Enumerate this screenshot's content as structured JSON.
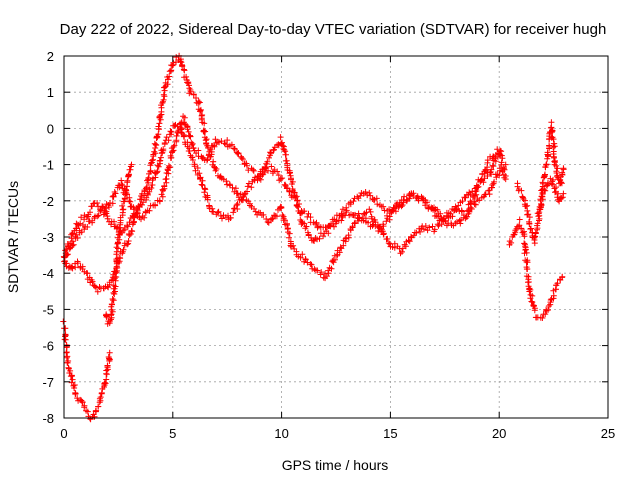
{
  "chart_data": {
    "type": "scatter",
    "title": "Day 222 of 2022, Sidereal Day-to-day VTEC variation (SDTVAR) for receiver hugh",
    "xlabel": "GPS time / hours",
    "ylabel": "SDTVAR / TECUs",
    "xlim": [
      0,
      25
    ],
    "ylim": [
      -8,
      2
    ],
    "x_ticks": [
      0,
      5,
      10,
      15,
      20,
      25
    ],
    "x_tick_labels": [
      "0",
      "5",
      "10",
      "15",
      "20",
      "25"
    ],
    "y_ticks": [
      -8,
      -7,
      -6,
      -5,
      -4,
      -3,
      -2,
      -1,
      0,
      1,
      2
    ],
    "y_tick_labels": [
      "-8",
      "-7",
      "-6",
      "-5",
      "-4",
      "-3",
      "-2",
      "-1",
      "0",
      "1",
      "2"
    ],
    "grid": true,
    "marker": "+",
    "color": "#ff0000",
    "series": [
      {
        "name": "trace-1",
        "x": [
          0.0,
          0.3,
          0.6,
          1.0,
          1.4,
          1.8,
          2.2,
          2.6,
          3.0,
          3.4,
          3.8,
          4.2,
          4.6,
          5.0,
          5.3,
          5.5,
          5.8,
          6.2,
          6.6,
          7.0,
          7.5,
          8.0,
          8.5,
          9.0,
          9.5,
          10.0,
          10.5,
          11.0,
          11.5,
          12.0,
          12.5,
          13.0,
          13.5,
          14.0,
          14.5,
          15.0,
          15.5,
          16.0,
          16.5,
          17.0,
          17.5,
          18.0,
          18.5,
          19.0,
          19.5,
          20.0,
          20.3
        ],
        "y": [
          -3.6,
          -3.9,
          -3.7,
          -4.0,
          -4.4,
          -4.5,
          -4.2,
          -3.5,
          -3.0,
          -2.2,
          -1.6,
          -0.5,
          1.0,
          1.8,
          2.0,
          1.6,
          1.0,
          0.7,
          -0.5,
          -1.2,
          -1.5,
          -1.8,
          -2.1,
          -2.4,
          -2.6,
          -2.2,
          -3.3,
          -3.6,
          -3.9,
          -4.1,
          -3.5,
          -3.0,
          -2.5,
          -2.3,
          -2.8,
          -3.2,
          -3.4,
          -3.0,
          -2.7,
          -2.8,
          -2.5,
          -2.3,
          -2.4,
          -2.0,
          -1.8,
          -1.2,
          -1.0
        ]
      },
      {
        "name": "trace-2",
        "x": [
          0.0,
          0.3,
          0.6,
          1.0,
          1.4,
          1.8,
          2.2,
          2.6,
          3.0,
          3.4,
          3.8,
          4.2,
          4.6,
          5.0,
          5.3,
          5.6,
          6.0,
          6.4,
          6.8,
          7.2,
          7.6,
          8.0,
          8.5,
          9.0,
          9.5,
          10.0,
          10.5,
          11.0,
          11.5,
          12.0,
          12.5,
          13.0,
          13.5,
          14.0,
          14.5,
          15.0,
          15.5,
          16.0,
          16.5,
          17.0,
          17.5,
          18.0,
          18.5,
          19.0,
          19.5,
          20.0
        ],
        "y": [
          -3.5,
          -3.1,
          -2.7,
          -2.4,
          -2.1,
          -2.2,
          -2.6,
          -2.9,
          -2.6,
          -2.2,
          -1.9,
          -1.3,
          -0.5,
          0.0,
          0.1,
          -0.4,
          -1.0,
          -1.6,
          -2.3,
          -2.4,
          -2.5,
          -2.1,
          -1.6,
          -1.3,
          -1.1,
          -1.4,
          -1.9,
          -2.3,
          -2.6,
          -2.8,
          -2.5,
          -2.2,
          -1.9,
          -1.8,
          -2.1,
          -2.3,
          -2.1,
          -1.8,
          -2.0,
          -2.2,
          -2.5,
          -2.2,
          -1.9,
          -1.6,
          -1.3,
          -0.7
        ]
      },
      {
        "name": "trace-3",
        "x": [
          0.0,
          0.3,
          0.6,
          0.9,
          1.2,
          1.5,
          1.8,
          2.2,
          2.6,
          3.0,
          3.5,
          4.0,
          4.5,
          5.0,
          5.5,
          6.0,
          6.5,
          7.0,
          7.5,
          8.0,
          8.5,
          9.0,
          9.5,
          10.0,
          10.5,
          11.0,
          11.5,
          12.0,
          12.5,
          13.0,
          13.5,
          14.0,
          14.5,
          15.0,
          15.5,
          16.0,
          16.5,
          17.0,
          17.5,
          18.0,
          18.5,
          19.0,
          19.5,
          20.0,
          20.3
        ],
        "y": [
          -3.7,
          -3.3,
          -3.0,
          -2.7,
          -2.6,
          -2.4,
          -2.3,
          -2.0,
          -1.5,
          -2.0,
          -2.5,
          -2.2,
          -1.9,
          -0.6,
          0.3,
          -0.6,
          -0.9,
          -0.3,
          -0.4,
          -0.7,
          -1.1,
          -1.4,
          -0.7,
          -0.3,
          -1.6,
          -2.7,
          -3.1,
          -2.9,
          -2.6,
          -2.3,
          -2.4,
          -2.6,
          -2.8,
          -2.4,
          -2.0,
          -1.8,
          -2.0,
          -2.3,
          -2.6,
          -2.7,
          -2.4,
          -1.6,
          -0.9,
          -0.6,
          -1.4
        ]
      },
      {
        "name": "trace-4",
        "x": [
          0.0,
          0.1,
          0.2,
          0.4,
          0.6,
          0.8,
          1.0,
          1.2,
          1.4,
          1.6,
          1.8,
          2.0,
          2.1
        ],
        "y": [
          -5.4,
          -6.0,
          -6.5,
          -7.0,
          -7.4,
          -7.6,
          -7.8,
          -8.0,
          -7.9,
          -7.6,
          -7.2,
          -6.7,
          -6.2
        ]
      },
      {
        "name": "trace-5",
        "x": [
          1.9,
          2.0,
          2.1,
          2.2,
          2.3,
          2.4,
          2.5,
          2.7,
          2.9,
          3.1
        ],
        "y": [
          -5.1,
          -5.3,
          -5.4,
          -5.0,
          -4.5,
          -3.8,
          -3.0,
          -2.2,
          -1.5,
          -1.0
        ]
      },
      {
        "name": "trace-6",
        "x": [
          20.5,
          20.7,
          20.9,
          21.1,
          21.3,
          21.5,
          21.7,
          21.9,
          22.1,
          22.3,
          22.5,
          22.7,
          22.9
        ],
        "y": [
          -3.2,
          -2.9,
          -2.6,
          -2.8,
          -4.0,
          -4.8,
          -5.2,
          -5.2,
          -5.1,
          -4.9,
          -4.6,
          -4.3,
          -4.1
        ]
      },
      {
        "name": "trace-7",
        "x": [
          20.8,
          21.0,
          21.2,
          21.4,
          21.6,
          21.8,
          22.0,
          22.2,
          22.4,
          22.6,
          22.8,
          22.95
        ],
        "y": [
          -1.6,
          -1.8,
          -2.0,
          -2.6,
          -3.1,
          -2.6,
          -1.6,
          -0.8,
          0.1,
          -1.0,
          -1.6,
          -1.1
        ]
      },
      {
        "name": "trace-8",
        "x": [
          21.8,
          22.0,
          22.2,
          22.4,
          22.6,
          22.8,
          22.95
        ],
        "y": [
          -2.4,
          -1.9,
          -1.5,
          -1.4,
          -1.7,
          -2.0,
          -1.8
        ]
      }
    ]
  }
}
